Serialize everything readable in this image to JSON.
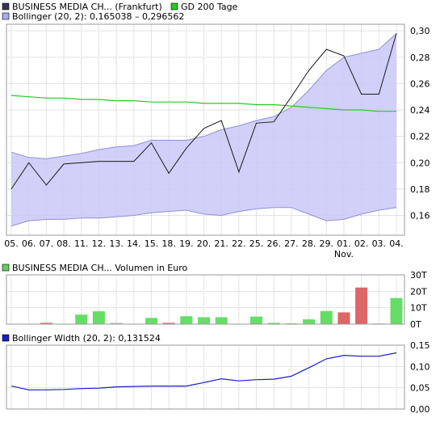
{
  "colors": {
    "price_line": "#1a1a1a",
    "band_fill": "#c8c8f8",
    "band_stroke": "#8f8fd9",
    "gd200": "#22cc22",
    "grid": "#c8c8c8",
    "frame": "#999999",
    "vol_up": "#66dd66",
    "vol_down": "#dd6666",
    "vol_flat": "#bbbbbb",
    "width_line": "#1a1acc",
    "swatch_price": "#333355",
    "swatch_band": "#aaaaee",
    "swatch_gd": "#22cc22",
    "swatch_vol": "#66cc66",
    "swatch_width": "#1a1acc"
  },
  "chart_data": [
    {
      "type": "line",
      "legend": [
        {
          "key": "price",
          "label": "BUSINESS MEDIA CH... (Frankfurt)"
        },
        {
          "key": "gd200",
          "label": "GD 200 Tage"
        },
        {
          "key": "band",
          "label": "Bollinger (20, 2): 0,165038 – 0,296562"
        }
      ],
      "x": [
        "05.",
        "06.",
        "07.",
        "08.",
        "11.",
        "12.",
        "13.",
        "14.",
        "15.",
        "18.",
        "19.",
        "20.",
        "21.",
        "22.",
        "25.",
        "26.",
        "27.",
        "28.",
        "29.",
        "01.",
        "02.",
        "03.",
        "04."
      ],
      "x_sublabel": {
        "index": 19,
        "text": "Nov."
      },
      "series": [
        {
          "name": "BUSINESS MEDIA CH... (Frankfurt)",
          "key": "price",
          "values": [
            0.18,
            0.2,
            0.183,
            0.199,
            0.2,
            0.201,
            0.201,
            0.201,
            0.215,
            0.192,
            0.211,
            0.226,
            0.232,
            0.193,
            0.23,
            0.231,
            0.25,
            0.27,
            0.286,
            0.281,
            0.252,
            0.252,
            0.298
          ]
        },
        {
          "name": "GD 200 Tage",
          "key": "gd200",
          "values": [
            0.251,
            0.25,
            0.249,
            0.249,
            0.248,
            0.248,
            0.247,
            0.247,
            0.246,
            0.246,
            0.246,
            0.245,
            0.245,
            0.245,
            0.244,
            0.244,
            0.243,
            0.242,
            0.241,
            0.24,
            0.24,
            0.239,
            0.239
          ]
        },
        {
          "name": "Bollinger upper",
          "key": "band_upper",
          "values": [
            0.208,
            0.204,
            0.203,
            0.205,
            0.207,
            0.21,
            0.212,
            0.213,
            0.217,
            0.217,
            0.217,
            0.22,
            0.225,
            0.228,
            0.232,
            0.235,
            0.242,
            0.255,
            0.27,
            0.28,
            0.283,
            0.286,
            0.298
          ]
        },
        {
          "name": "Bollinger lower",
          "key": "band_lower",
          "values": [
            0.152,
            0.156,
            0.157,
            0.157,
            0.158,
            0.158,
            0.159,
            0.16,
            0.162,
            0.163,
            0.164,
            0.161,
            0.16,
            0.163,
            0.165,
            0.166,
            0.166,
            0.161,
            0.156,
            0.157,
            0.161,
            0.164,
            0.166
          ]
        }
      ],
      "y_ticks": [
        "0,30",
        "0,28",
        "0,26",
        "0,24",
        "0,22",
        "0,20",
        "0,18",
        "0,16"
      ],
      "y_tick_values": [
        0.3,
        0.28,
        0.26,
        0.24,
        0.22,
        0.2,
        0.18,
        0.16
      ],
      "ylim": [
        0.145,
        0.305
      ],
      "grid": true
    },
    {
      "type": "bar",
      "legend": [
        {
          "key": "volume",
          "label": "BUSINESS MEDIA CH... Volumen in Euro"
        }
      ],
      "categories": [
        "05.",
        "06.",
        "07.",
        "08.",
        "11.",
        "12.",
        "13.",
        "14.",
        "15.",
        "18.",
        "19.",
        "20.",
        "21.",
        "22.",
        "25.",
        "26.",
        "27.",
        "28.",
        "29.",
        "01.",
        "02.",
        "03.",
        "04."
      ],
      "values": [
        0,
        0,
        0.8,
        0,
        5.8,
        7.8,
        0.8,
        0,
        3.8,
        0.8,
        4.8,
        4.2,
        4.2,
        0,
        4.6,
        0.8,
        0.5,
        2.9,
        8.0,
        7.2,
        22.3,
        0.4,
        15.9
      ],
      "bar_state": [
        "none",
        "none",
        "down",
        "none",
        "up",
        "up",
        "flat",
        "none",
        "up",
        "down",
        "up",
        "up",
        "up",
        "none",
        "up",
        "up",
        "up",
        "up",
        "up",
        "down",
        "down",
        "flat",
        "up"
      ],
      "y_ticks": [
        "30T",
        "20T",
        "10T",
        "0T"
      ],
      "y_tick_values": [
        30,
        20,
        10,
        0
      ],
      "ylim": [
        0,
        30
      ],
      "grid": true
    },
    {
      "type": "line",
      "legend": [
        {
          "key": "width",
          "label": "Bollinger Width (20, 2): 0,131524"
        }
      ],
      "x": [
        "05.",
        "06.",
        "07.",
        "08.",
        "11.",
        "12.",
        "13.",
        "14.",
        "15.",
        "18.",
        "19.",
        "20.",
        "21.",
        "22.",
        "25.",
        "26.",
        "27.",
        "28.",
        "29.",
        "01.",
        "02.",
        "03.",
        "04."
      ],
      "series": [
        {
          "name": "Bollinger Width (20, 2): 0,131524",
          "key": "width",
          "values": [
            0.054,
            0.045,
            0.045,
            0.046,
            0.048,
            0.049,
            0.052,
            0.053,
            0.054,
            0.054,
            0.054,
            0.062,
            0.071,
            0.066,
            0.069,
            0.07,
            0.077,
            0.097,
            0.118,
            0.126,
            0.124,
            0.124,
            0.132
          ]
        }
      ],
      "y_ticks": [
        "0,15",
        "0,10",
        "0,05",
        "0,00"
      ],
      "y_tick_values": [
        0.15,
        0.1,
        0.05,
        0.0
      ],
      "ylim": [
        0,
        0.15
      ],
      "grid": true
    }
  ]
}
